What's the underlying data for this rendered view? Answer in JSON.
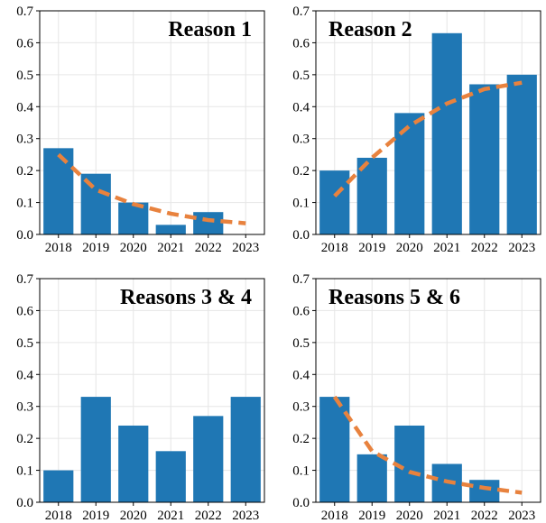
{
  "colors": {
    "bar": "#1f77b4",
    "trend": "#e8823e",
    "grid": "#e6e6e6",
    "axis": "#000000"
  },
  "chart_data": [
    {
      "type": "bar",
      "title": "Reason 1",
      "categories": [
        "2018",
        "2019",
        "2020",
        "2021",
        "2022",
        "2023"
      ],
      "values": [
        0.27,
        0.19,
        0.1,
        0.03,
        0.07,
        0.0
      ],
      "trend": {
        "style": "dashed",
        "values": [
          0.25,
          0.14,
          0.095,
          0.065,
          0.045,
          0.035
        ]
      },
      "ylim": [
        0,
        0.7
      ],
      "yticks": [
        "0.0",
        "0.1",
        "0.2",
        "0.3",
        "0.4",
        "0.5",
        "0.6",
        "0.7"
      ],
      "grid": true,
      "title_position": "top-right"
    },
    {
      "type": "bar",
      "title": "Reason 2",
      "categories": [
        "2018",
        "2019",
        "2020",
        "2021",
        "2022",
        "2023"
      ],
      "values": [
        0.2,
        0.24,
        0.38,
        0.63,
        0.47,
        0.5
      ],
      "trend": {
        "style": "dashed",
        "values": [
          0.12,
          0.24,
          0.34,
          0.41,
          0.455,
          0.475
        ]
      },
      "ylim": [
        0,
        0.7
      ],
      "yticks": [
        "0.0",
        "0.1",
        "0.2",
        "0.3",
        "0.4",
        "0.5",
        "0.6",
        "0.7"
      ],
      "grid": true,
      "title_position": "top-left"
    },
    {
      "type": "bar",
      "title": "Reasons 3 & 4",
      "categories": [
        "2018",
        "2019",
        "2020",
        "2021",
        "2022",
        "2023"
      ],
      "values": [
        0.1,
        0.33,
        0.24,
        0.16,
        0.27,
        0.33
      ],
      "trend": null,
      "ylim": [
        0,
        0.7
      ],
      "yticks": [
        "0.0",
        "0.1",
        "0.2",
        "0.3",
        "0.4",
        "0.5",
        "0.6",
        "0.7"
      ],
      "grid": true,
      "title_position": "top-right"
    },
    {
      "type": "bar",
      "title": "Reasons 5 & 6",
      "categories": [
        "2018",
        "2019",
        "2020",
        "2021",
        "2022",
        "2023"
      ],
      "values": [
        0.33,
        0.15,
        0.24,
        0.12,
        0.07,
        0.0
      ],
      "trend": {
        "style": "dashed",
        "values": [
          0.33,
          0.16,
          0.095,
          0.065,
          0.045,
          0.03
        ]
      },
      "ylim": [
        0,
        0.7
      ],
      "yticks": [
        "0.0",
        "0.1",
        "0.2",
        "0.3",
        "0.4",
        "0.5",
        "0.6",
        "0.7"
      ],
      "grid": true,
      "title_position": "top-left"
    }
  ]
}
